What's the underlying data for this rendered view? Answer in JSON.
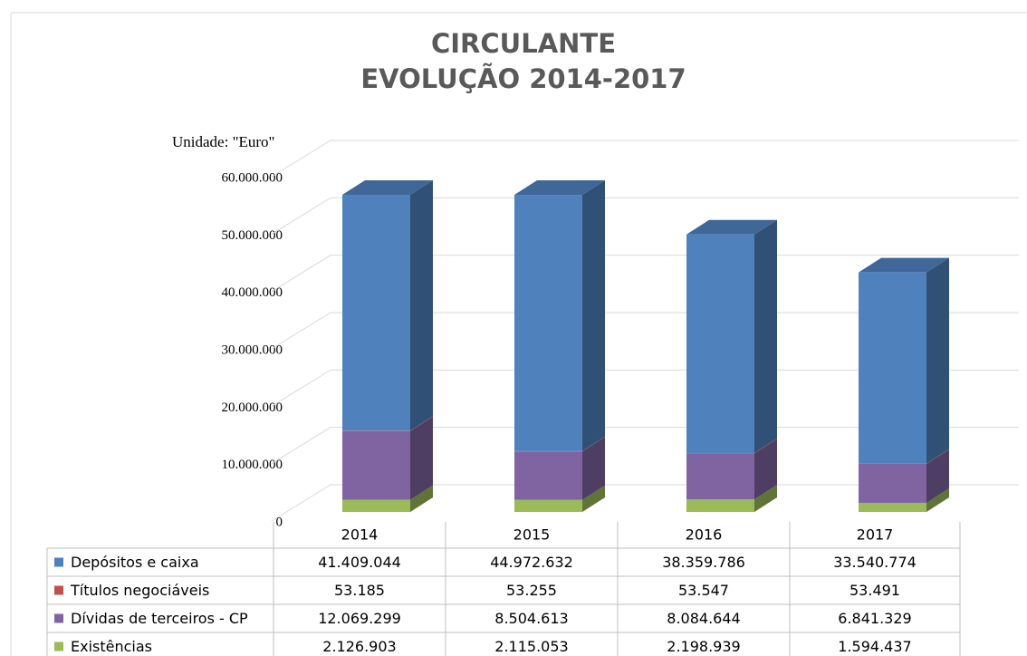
{
  "chart_data": {
    "type": "bar3d_stacked",
    "title": "CIRCULANTE",
    "subtitle": "EVOLUÇÃO 2014-2017",
    "unit_label": "Unidade: \"Euro\"",
    "categories": [
      "2014",
      "2015",
      "2016",
      "2017"
    ],
    "series": [
      {
        "name": "Depósitos e caixa",
        "color": "#4f81bd",
        "values": [
          41409044,
          44972632,
          38359786,
          33540774
        ],
        "value_labels": [
          "41.409.044",
          "44.972.632",
          "38.359.786",
          "33.540.774"
        ]
      },
      {
        "name": "Títulos negociáveis",
        "color": "#c0504d",
        "values": [
          53185,
          53255,
          53547,
          53491
        ],
        "value_labels": [
          "53.185",
          "53.255",
          "53.547",
          "53.491"
        ]
      },
      {
        "name": "Dívidas de terceiros - CP",
        "color": "#8064a2",
        "values": [
          12069299,
          8504613,
          8084644,
          6841329
        ],
        "value_labels": [
          "12.069.299",
          "8.504.613",
          "8.084.644",
          "6.841.329"
        ]
      },
      {
        "name": "Existências",
        "color": "#9bbb59",
        "values": [
          2126903,
          2115053,
          2198939,
          1594437
        ],
        "value_labels": [
          "2.126.903",
          "2.115.053",
          "2.198.939",
          "1.594.437"
        ]
      }
    ],
    "ylim": [
      0,
      60000000
    ],
    "yticks": [
      0,
      {
        "value": 10000000,
        "label": "10.000.000"
      },
      {
        "value": 20000000,
        "label": "20.000.000"
      },
      {
        "value": 30000000,
        "label": "30.000.000"
      },
      {
        "value": 40000000,
        "label": "40.000.000"
      },
      {
        "value": 50000000,
        "label": "50.000.000"
      },
      {
        "value": 60000000,
        "label": "60.000.000"
      }
    ],
    "grid": true
  }
}
